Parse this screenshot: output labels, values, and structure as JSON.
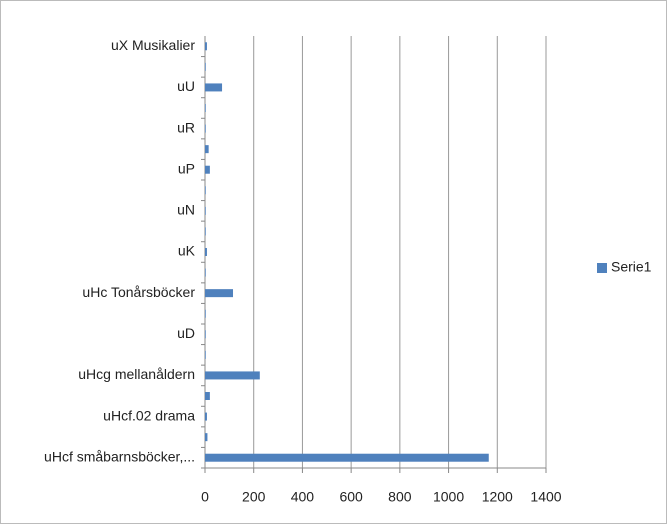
{
  "chart_data": {
    "type": "bar",
    "orientation": "horizontal",
    "categories": [
      "uHcf småbarnsböcker,...",
      null,
      "uHcf.02 drama",
      null,
      "uHcg mellanåldern",
      null,
      "uD",
      null,
      "uHc Tonårsböcker",
      null,
      "uK",
      null,
      "uN",
      null,
      "uP",
      null,
      "uR",
      null,
      "uU",
      null,
      "uX Musikalier"
    ],
    "series": [
      {
        "name": "Serie1",
        "color": "#4f81bd",
        "values": [
          1165,
          10,
          8,
          20,
          225,
          3,
          3,
          3,
          115,
          3,
          8,
          3,
          3,
          3,
          20,
          15,
          3,
          3,
          70,
          3,
          8
        ]
      }
    ],
    "xlim": [
      0,
      1400
    ],
    "xticks": [
      0,
      200,
      400,
      600,
      800,
      1000,
      1200,
      1400
    ],
    "grid": true,
    "legend": "right"
  }
}
